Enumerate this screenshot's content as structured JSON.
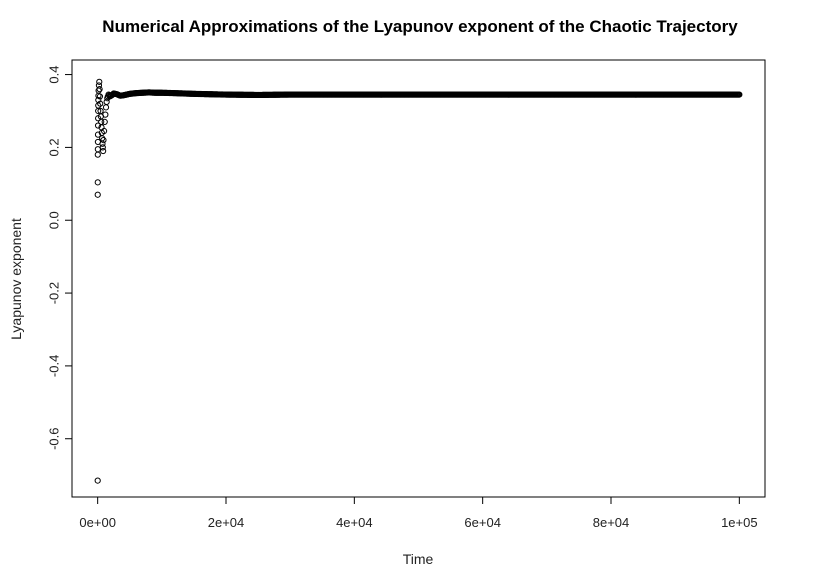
{
  "chart_data": {
    "type": "scatter",
    "title": "Numerical Approximations of the Lyapunov exponent of the Chaotic Trajectory",
    "xlabel": "Time",
    "ylabel": "Lyapunov exponent",
    "xlim": [
      -4000,
      104000
    ],
    "ylim": [
      -0.76,
      0.44
    ],
    "x_ticks": [
      0,
      20000,
      40000,
      60000,
      80000,
      100000
    ],
    "x_tick_labels": [
      "0e+00",
      "2e+04",
      "4e+04",
      "6e+04",
      "8e+04",
      "1e+05"
    ],
    "y_ticks": [
      -0.6,
      -0.4,
      -0.2,
      0.0,
      0.2,
      0.4
    ],
    "y_tick_labels": [
      "-0.6",
      "-0.4",
      "-0.2",
      "0.0",
      "0.2",
      "0.4"
    ],
    "grid": false,
    "legend": "none",
    "marker": "open-circle",
    "series": [
      {
        "points": [
          [
            5,
            -0.715
          ],
          [
            10,
            0.07
          ],
          [
            15,
            0.104
          ],
          [
            20,
            0.18
          ],
          [
            30,
            0.195
          ],
          [
            40,
            0.215
          ],
          [
            50,
            0.235
          ],
          [
            60,
            0.26
          ],
          [
            70,
            0.28
          ],
          [
            80,
            0.3
          ],
          [
            90,
            0.315
          ],
          [
            100,
            0.33
          ],
          [
            120,
            0.342
          ],
          [
            150,
            0.356
          ],
          [
            200,
            0.37
          ],
          [
            250,
            0.38
          ],
          [
            300,
            0.36
          ],
          [
            350,
            0.34
          ],
          [
            400,
            0.32
          ],
          [
            450,
            0.3
          ],
          [
            500,
            0.285
          ],
          [
            550,
            0.27
          ],
          [
            600,
            0.255
          ],
          [
            650,
            0.24
          ],
          [
            700,
            0.225
          ],
          [
            750,
            0.21
          ],
          [
            800,
            0.2
          ],
          [
            850,
            0.19
          ],
          [
            900,
            0.22
          ],
          [
            1000,
            0.245
          ],
          [
            1100,
            0.27
          ],
          [
            1200,
            0.29
          ],
          [
            1300,
            0.31
          ],
          [
            1400,
            0.325
          ],
          [
            1500,
            0.335
          ],
          [
            1700,
            0.345
          ],
          [
            1900,
            0.34
          ],
          [
            2200,
            0.343
          ],
          [
            2500,
            0.348
          ],
          [
            3000,
            0.346
          ],
          [
            3500,
            0.342
          ],
          [
            4000,
            0.343
          ],
          [
            5000,
            0.347
          ],
          [
            6000,
            0.349
          ],
          [
            7000,
            0.35
          ],
          [
            8000,
            0.351
          ],
          [
            9000,
            0.35
          ],
          [
            10000,
            0.35
          ],
          [
            12000,
            0.349
          ],
          [
            15000,
            0.347
          ],
          [
            20000,
            0.345
          ],
          [
            25000,
            0.344
          ],
          [
            30000,
            0.345
          ],
          [
            40000,
            0.345
          ],
          [
            50000,
            0.345
          ],
          [
            60000,
            0.345
          ],
          [
            70000,
            0.345
          ],
          [
            80000,
            0.345
          ],
          [
            90000,
            0.345
          ],
          [
            100000,
            0.345
          ]
        ]
      }
    ]
  }
}
